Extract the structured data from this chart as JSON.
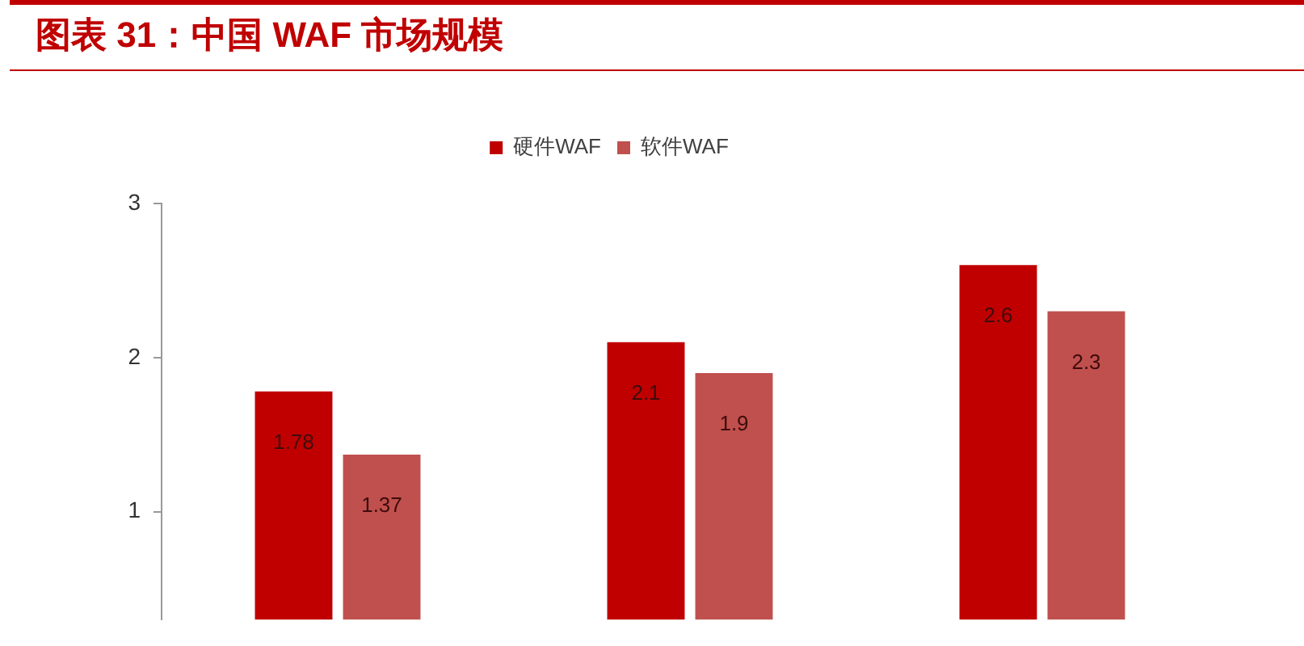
{
  "chart_data": {
    "type": "bar",
    "title": "图表 31：中国 WAF 市场规模",
    "categories": [
      null,
      null,
      null
    ],
    "series": [
      {
        "name": "硬件WAF",
        "color": "#c00000",
        "values": [
          1.78,
          2.1,
          2.6
        ]
      },
      {
        "name": "软件WAF",
        "color": "#c0504d",
        "values": [
          1.37,
          1.9,
          2.3
        ]
      }
    ],
    "ylim": [
      0.3,
      3
    ],
    "yticks": [
      1,
      2,
      3
    ],
    "tick_labels": "y",
    "grid": false,
    "legend": "top",
    "data_labels": true
  }
}
